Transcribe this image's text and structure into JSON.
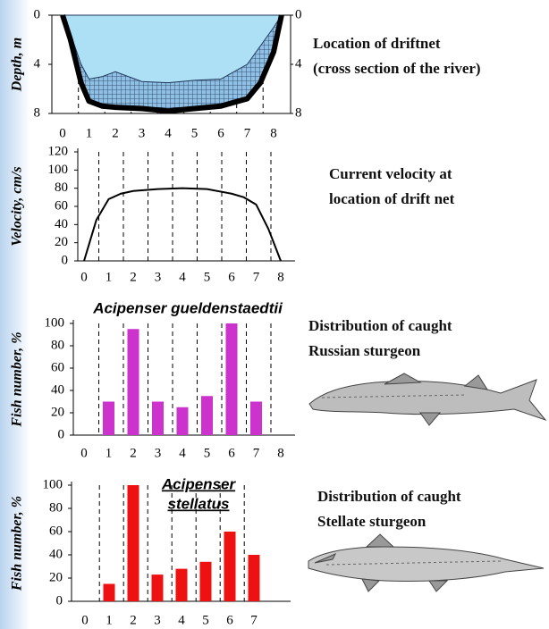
{
  "chart_data": [
    {
      "type": "area",
      "y_label": "Depth, m",
      "annotation": [
        "Location of driftnet",
        "(cross section of the river)"
      ],
      "x": [
        0,
        0.3,
        0.7,
        1,
        1.5,
        2,
        3,
        4,
        5,
        6,
        7,
        7.5,
        8,
        8.3
      ],
      "series": [
        {
          "color": "#000000",
          "values": [
            0,
            2,
            5.5,
            7,
            7.4,
            7.5,
            7.6,
            7.8,
            7.6,
            7.4,
            6.8,
            5.5,
            3,
            0
          ]
        },
        {
          "color": "#aee0f5",
          "values": [
            0,
            1.5,
            4,
            5.2,
            5,
            4.6,
            5.4,
            5.5,
            5.3,
            5.2,
            4,
            2.5,
            1,
            0
          ]
        }
      ],
      "xticks": [
        0,
        1,
        2,
        3,
        4,
        5,
        6,
        7,
        8
      ],
      "ylim": [
        0,
        8
      ],
      "yticks": [
        0,
        4,
        8
      ],
      "y2lim": [
        0,
        8
      ],
      "y2ticks": [
        0,
        4,
        8
      ],
      "y_inverted": true
    },
    {
      "type": "line",
      "y_label": "Velocity, cm/s",
      "annotation": [
        "Current velocity at",
        "location of drift net"
      ],
      "x": [
        0,
        0.5,
        1,
        1.5,
        2,
        3,
        4,
        5,
        6,
        6.5,
        7,
        7.5,
        8
      ],
      "values": [
        0,
        45,
        68,
        74,
        77,
        79,
        80,
        79,
        74,
        70,
        62,
        35,
        0
      ],
      "color": "#000000",
      "xticks": [
        0,
        1,
        2,
        3,
        4,
        5,
        6,
        7,
        8
      ],
      "ylim": [
        0,
        120
      ],
      "yticks": [
        0,
        20,
        40,
        60,
        80,
        100,
        120
      ]
    },
    {
      "type": "bar",
      "title": [
        "Acipenser gueldenstaedtii"
      ],
      "y_label": "Fish number, %",
      "annotation": [
        "Distribution of caught",
        "Russian sturgeon"
      ],
      "categories": [
        "0",
        "1",
        "2",
        "3",
        "4",
        "5",
        "6",
        "7",
        "8"
      ],
      "values": [
        null,
        30,
        95,
        30,
        25,
        35,
        100,
        30,
        null
      ],
      "color": "#cc33cc",
      "ylim": [
        0,
        100
      ],
      "yticks": [
        0,
        20,
        40,
        60,
        80,
        100
      ]
    },
    {
      "type": "bar",
      "title": [
        "Acipenser",
        "stellatus"
      ],
      "y_label": "Fish number, %",
      "annotation": [
        "Distribution of caught",
        "Stellate sturgeon"
      ],
      "categories": [
        "0",
        "1",
        "2",
        "3",
        "4",
        "5",
        "6",
        "7"
      ],
      "values": [
        null,
        15,
        100,
        23,
        28,
        34,
        60,
        40
      ],
      "color": "#ee1111",
      "ylim": [
        0,
        100
      ],
      "yticks": [
        0,
        20,
        40,
        60,
        80,
        100
      ]
    }
  ]
}
